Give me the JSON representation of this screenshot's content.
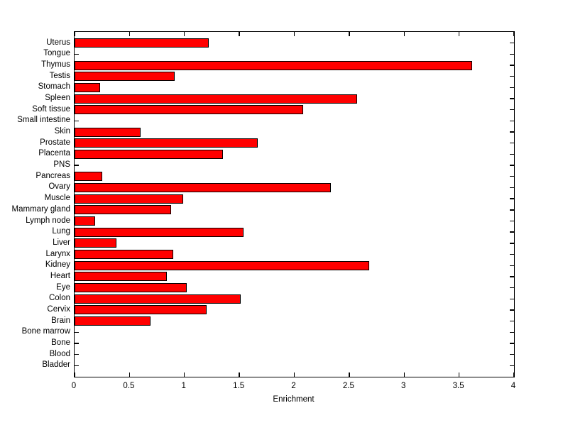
{
  "chart_data": {
    "type": "bar",
    "orientation": "horizontal",
    "title": "",
    "xlabel": "Enrichment",
    "ylabel": "",
    "categories": [
      "Uterus",
      "Tongue",
      "Thymus",
      "Testis",
      "Stomach",
      "Spleen",
      "Soft tissue",
      "Small intestine",
      "Skin",
      "Prostate",
      "Placenta",
      "PNS",
      "Pancreas",
      "Ovary",
      "Muscle",
      "Mammary gland",
      "Lymph node",
      "Lung",
      "Liver",
      "Larynx",
      "Kidney",
      "Heart",
      "Eye",
      "Colon",
      "Cervix",
      "Brain",
      "Bone marrow",
      "Bone",
      "Blood",
      "Bladder"
    ],
    "values": [
      1.22,
      0,
      3.62,
      0.91,
      0.23,
      2.57,
      2.08,
      0,
      0.6,
      1.67,
      1.35,
      0,
      0.25,
      2.33,
      0.99,
      0.88,
      0.19,
      1.54,
      0.38,
      0.9,
      2.68,
      0.84,
      1.02,
      1.51,
      1.2,
      0.69,
      0,
      0,
      0,
      0
    ],
    "xlim": [
      0,
      4
    ],
    "xticks": [
      0,
      0.5,
      1,
      1.5,
      2,
      2.5,
      3,
      3.5,
      4
    ],
    "xtick_labels": [
      "0",
      "0.5",
      "1",
      "1.5",
      "2",
      "2.5",
      "3",
      "3.5",
      "4"
    ],
    "grid": false,
    "legend": "none",
    "bar_color": "#ff0000",
    "bar_border_color": "#000000",
    "axis_color": "#000000",
    "background_color": "#ffffff"
  }
}
